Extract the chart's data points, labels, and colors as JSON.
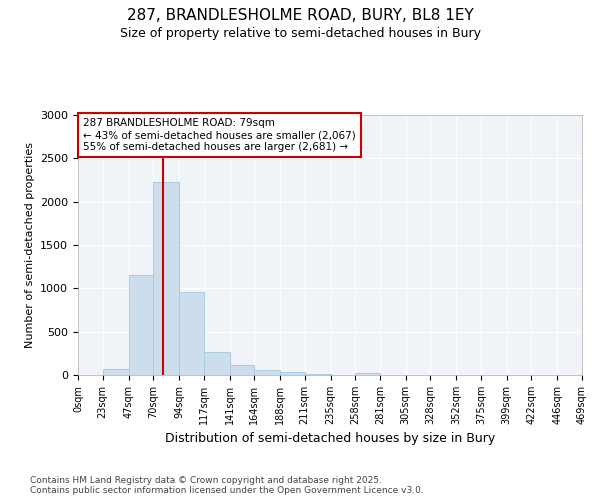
{
  "title_line1": "287, BRANDLESHOLME ROAD, BURY, BL8 1EY",
  "title_line2": "Size of property relative to semi-detached houses in Bury",
  "xlabel": "Distribution of semi-detached houses by size in Bury",
  "ylabel": "Number of semi-detached properties",
  "bar_bins": [
    0,
    23,
    47,
    70,
    94,
    117,
    141,
    164,
    188,
    211,
    235,
    258,
    281,
    305,
    328,
    352,
    375,
    399,
    422,
    446,
    469
  ],
  "bar_values": [
    0,
    75,
    1150,
    2225,
    960,
    270,
    110,
    55,
    35,
    15,
    5,
    18,
    0,
    0,
    0,
    0,
    0,
    0,
    0,
    0
  ],
  "bar_color": "#ccdded",
  "bar_edge_color": "#aaccdd",
  "red_line_x": 79,
  "annotation_text": "287 BRANDLESHOLME ROAD: 79sqm\n← 43% of semi-detached houses are smaller (2,067)\n55% of semi-detached houses are larger (2,681) →",
  "annotation_box_color": "#ffffff",
  "annotation_box_edge_color": "#cc0000",
  "ylim": [
    0,
    3000
  ],
  "yticks": [
    0,
    500,
    1000,
    1500,
    2000,
    2500,
    3000
  ],
  "xtick_labels": [
    "0sqm",
    "23sqm",
    "47sqm",
    "70sqm",
    "94sqm",
    "117sqm",
    "141sqm",
    "164sqm",
    "188sqm",
    "211sqm",
    "235sqm",
    "258sqm",
    "281sqm",
    "305sqm",
    "328sqm",
    "352sqm",
    "375sqm",
    "399sqm",
    "422sqm",
    "446sqm",
    "469sqm"
  ],
  "footer_text": "Contains HM Land Registry data © Crown copyright and database right 2025.\nContains public sector information licensed under the Open Government Licence v3.0.",
  "bg_color": "#ffffff",
  "plot_bg_color": "#f0f4f8"
}
